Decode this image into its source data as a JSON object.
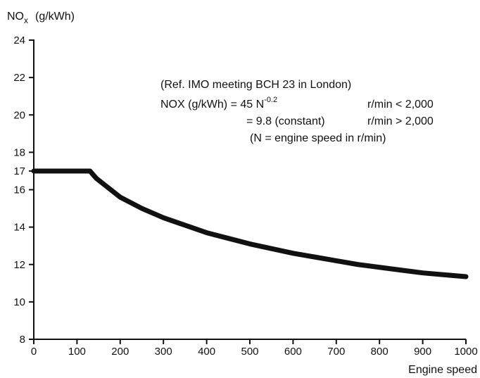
{
  "chart_data": {
    "type": "line",
    "title": "",
    "xlabel": "Engine speed",
    "ylabel": "NOx (g/kWh)",
    "ylabel_parts": {
      "main": "NO",
      "subscript": "x",
      "unit": "(g/kWh)"
    },
    "xlim": [
      0,
      1000
    ],
    "ylim": [
      8,
      24
    ],
    "x_ticks": [
      0,
      100,
      200,
      300,
      400,
      500,
      600,
      700,
      800,
      900,
      1000
    ],
    "y_ticks": [
      8,
      10,
      12,
      14,
      16,
      17,
      18,
      20,
      22,
      24
    ],
    "grid": false,
    "series": [
      {
        "x": [
          0,
          130,
          145,
          200,
          250,
          300,
          350,
          400,
          450,
          500,
          550,
          600,
          650,
          700,
          750,
          800,
          850,
          900,
          950,
          1000
        ],
        "y": [
          17.0,
          17.0,
          16.6,
          15.6,
          15.0,
          14.5,
          14.1,
          13.7,
          13.4,
          13.1,
          12.85,
          12.6,
          12.4,
          12.2,
          12.0,
          11.85,
          11.7,
          11.55,
          11.45,
          11.35
        ]
      }
    ],
    "annotations": {
      "ref_line": "(Ref. IMO meeting BCH 23 in London)",
      "formula1_left": "NOX (g/kWh) = 45 N",
      "formula1_exp": "-0.2",
      "formula1_cond": "r/min < 2,000",
      "formula2_left": "= 9.8 (constant)",
      "formula2_cond": "r/min > 2,000",
      "formula3": "(N = engine speed in r/min)"
    }
  },
  "colors": {
    "line": "#111111",
    "axis": "#111111",
    "background": "#ffffff"
  }
}
